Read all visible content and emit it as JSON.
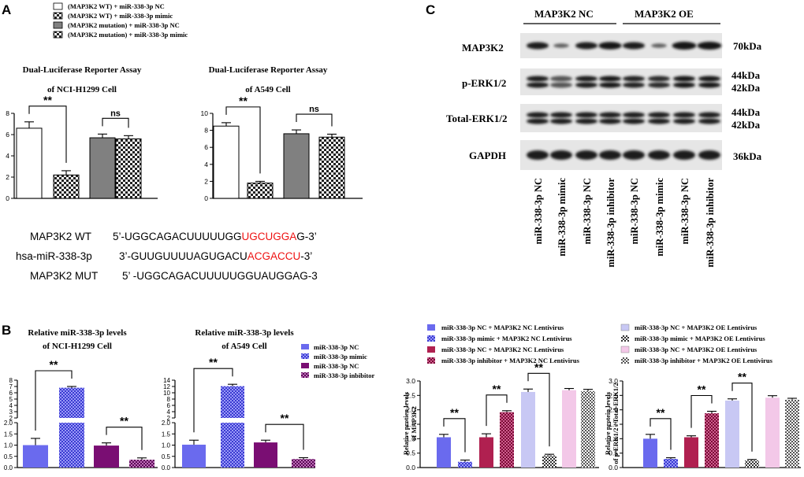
{
  "figure": {
    "A": {
      "label": "A",
      "legend": [
        "(MAP3K2 WT) + miR-338-3p NC",
        "(MAP3K2 WT) + miR-338-3p mimic",
        "(MAP3K2 mutation) + miR-338-3p NC",
        "(MAP3K2 mutation) + miR-338-3p mimic"
      ],
      "seq": [
        {
          "name": "MAP3K2 WT",
          "prefix": "5’-UGGCAGACUUUUUGG",
          "highlight": "UGCUGGA",
          "suffix": "G-3’"
        },
        {
          "name": "hsa-miR-338-3p",
          "prefix": "3’-GUUGUUUUAGUGACU",
          "highlight": "ACGACCU",
          "suffix": "-3’"
        },
        {
          "name": "MAP3K2 MUT",
          "prefix": "5’  -UGGCAGACUUUUUGGUAUGGAG-3",
          "highlight": "",
          "suffix": ""
        }
      ]
    },
    "B": {
      "label": "B",
      "legend": [
        "miR-338-3p NC",
        "miR-338-3p mimic",
        "miR-338-3p NC",
        "miR-338-3p inbibitor"
      ]
    },
    "C": {
      "label": "C",
      "group_labels": [
        "MAP3K2 NC",
        "MAP3K2 OE"
      ],
      "rows": [
        "MAP3K2",
        "p-ERK1/2",
        "Total-ERK1/2",
        "GAPDH"
      ],
      "kda": [
        [
          "70kDa"
        ],
        [
          "44kDa",
          "42kDa"
        ],
        [
          "44kDa",
          "42kDa"
        ],
        [
          "36kDa"
        ]
      ],
      "lanes": [
        "miR-338-3p NC",
        "miR-338-3p mimic",
        "miR-338-3p NC",
        "miR-338-3p inhibitor",
        "miR-338-3p NC",
        "miR-338-3p mimic",
        "miR-338-3p NC",
        "miR-338-3p inhibitor"
      ],
      "legend_left": [
        "miR-338-3p NC + MAP3K2 NC Lentivirus",
        "miR-338-3p mimic + MAP3K2 NC Lentivirus",
        "miR-338-3p NC + MAP3K2 NC Lentivirus",
        "miR-338-3p inhibitor + MAP3K2 NC Lentivirus"
      ],
      "legend_right": [
        "miR-338-3p NC + MAP3K2 OE Lentivirus",
        "miR-338-3p mimic + MAP3K2 OE Lentivirus",
        "miR-338-3p NC + MAP3K2 OE Lentivirus",
        "miR-338-3p inhibitor + MAP3K2 OE Lentivirus"
      ]
    }
  },
  "colors": {
    "white": "#ffffff",
    "check": "#222222",
    "grey": "#808080",
    "blue": "#6a6aee",
    "purple": "#7a0e73",
    "red": "#b02050",
    "lavender": "#c8c8f4",
    "pink": "#f3c8e8",
    "seq_red": "#ee1111"
  },
  "chart_data": [
    {
      "id": "A1",
      "type": "bar",
      "title": [
        "Dual-Luciferase Reporter Assay",
        "of NCI-H1299 Cell"
      ],
      "xlabel": "",
      "ylabel": "",
      "values": [
        6.6,
        2.2,
        5.7,
        5.6
      ],
      "errors": [
        0.6,
        0.4,
        0.35,
        0.3
      ],
      "fills": [
        "white",
        "check",
        "grey",
        "check"
      ],
      "ylim": [
        0,
        8
      ],
      "yticks": [
        0,
        2,
        4,
        6,
        8
      ],
      "annotations": [
        {
          "text": "**",
          "from": 0,
          "to": 1
        },
        {
          "text": "ns",
          "from": 2,
          "to": 3
        }
      ]
    },
    {
      "id": "A2",
      "type": "bar",
      "title": [
        "Dual-Luciferase Reporter Assay",
        "of A549 Cell"
      ],
      "xlabel": "",
      "ylabel": "",
      "values": [
        8.5,
        1.8,
        7.6,
        7.2
      ],
      "errors": [
        0.4,
        0.2,
        0.45,
        0.35
      ],
      "fills": [
        "white",
        "check",
        "grey",
        "check"
      ],
      "ylim": [
        0,
        10
      ],
      "yticks": [
        0,
        2,
        4,
        6,
        8,
        10
      ],
      "annotations": [
        {
          "text": "**",
          "from": 0,
          "to": 1
        },
        {
          "text": "ns",
          "from": 2,
          "to": 3
        }
      ]
    },
    {
      "id": "B1",
      "type": "bar",
      "broken_axis": true,
      "title": [
        "Relative miR-338-3p levels",
        "of NCI-H1299 Cell"
      ],
      "xlabel": "",
      "ylabel": "",
      "values": [
        1.0,
        6.8,
        0.98,
        0.35
      ],
      "errors": [
        0.3,
        0.2,
        0.12,
        0.08
      ],
      "fills": [
        "blue",
        "blue-check",
        "purple",
        "purple-check"
      ],
      "lower_ylim": [
        0,
        2
      ],
      "lower_yticks": [
        0.0,
        0.5,
        1.0,
        1.5,
        2.0
      ],
      "upper_ylim": [
        2,
        8
      ],
      "upper_yticks": [
        2,
        3,
        4,
        5,
        6,
        7,
        8
      ],
      "annotations": [
        {
          "text": "**",
          "from": 0,
          "to": 1
        },
        {
          "text": "**",
          "from": 2,
          "to": 3
        }
      ]
    },
    {
      "id": "B2",
      "type": "bar",
      "broken_axis": true,
      "title": [
        "Relative miR-338-3p levels",
        "of A549 Cell"
      ],
      "xlabel": "",
      "ylabel": "",
      "values": [
        1.02,
        12.1,
        1.12,
        0.38
      ],
      "errors": [
        0.2,
        0.6,
        0.1,
        0.06
      ],
      "fills": [
        "blue",
        "blue-check",
        "purple",
        "purple-check"
      ],
      "lower_ylim": [
        0,
        2
      ],
      "lower_yticks": [
        0.0,
        0.5,
        1.0,
        1.5,
        2.0
      ],
      "upper_ylim": [
        2,
        14
      ],
      "upper_yticks": [
        2,
        4,
        6,
        8,
        10,
        12,
        14
      ],
      "annotations": [
        {
          "text": "**",
          "from": 0,
          "to": 1
        },
        {
          "text": "**",
          "from": 2,
          "to": 3
        }
      ]
    },
    {
      "id": "C1",
      "type": "bar",
      "title": [],
      "xlabel": "",
      "ylabel": [
        "Relative protien levels",
        "of MAP3K2"
      ],
      "values": [
        1.05,
        0.2,
        1.05,
        1.92,
        2.62,
        0.42,
        2.68,
        2.65
      ],
      "errors": [
        0.1,
        0.06,
        0.12,
        0.05,
        0.1,
        0.04,
        0.06,
        0.06
      ],
      "fills": [
        "blue",
        "blue-check",
        "red",
        "red-check",
        "lavender",
        "lavender-check",
        "pink",
        "pink-check"
      ],
      "ylim": [
        0,
        3.0
      ],
      "yticks": [
        0.0,
        0.5,
        1.0,
        1.5,
        2.0,
        2.5,
        3.0
      ],
      "annotations": [
        {
          "text": "**",
          "from": 0,
          "to": 1
        },
        {
          "text": "**",
          "from": 2,
          "to": 3
        },
        {
          "text": "**",
          "from": 4,
          "to": 5
        }
      ]
    },
    {
      "id": "C2",
      "type": "bar",
      "title": [],
      "xlabel": "",
      "ylabel": [
        "Relative protein levels",
        "of p-ERK1/2 / Total-ERK1/2"
      ],
      "values": [
        1.0,
        0.3,
        1.05,
        1.88,
        2.32,
        0.25,
        2.42,
        2.35
      ],
      "errors": [
        0.15,
        0.04,
        0.05,
        0.07,
        0.06,
        0.03,
        0.07,
        0.05
      ],
      "fills": [
        "blue",
        "blue-check",
        "red",
        "red-check",
        "lavender",
        "lavender-check",
        "pink",
        "pink-check"
      ],
      "ylim": [
        0,
        3.0
      ],
      "yticks": [
        0.0,
        0.5,
        1.0,
        1.5,
        2.0,
        2.5,
        3.0
      ],
      "annotations": [
        {
          "text": "**",
          "from": 0,
          "to": 1
        },
        {
          "text": "**",
          "from": 2,
          "to": 3
        },
        {
          "text": "**",
          "from": 4,
          "to": 5
        }
      ]
    }
  ]
}
